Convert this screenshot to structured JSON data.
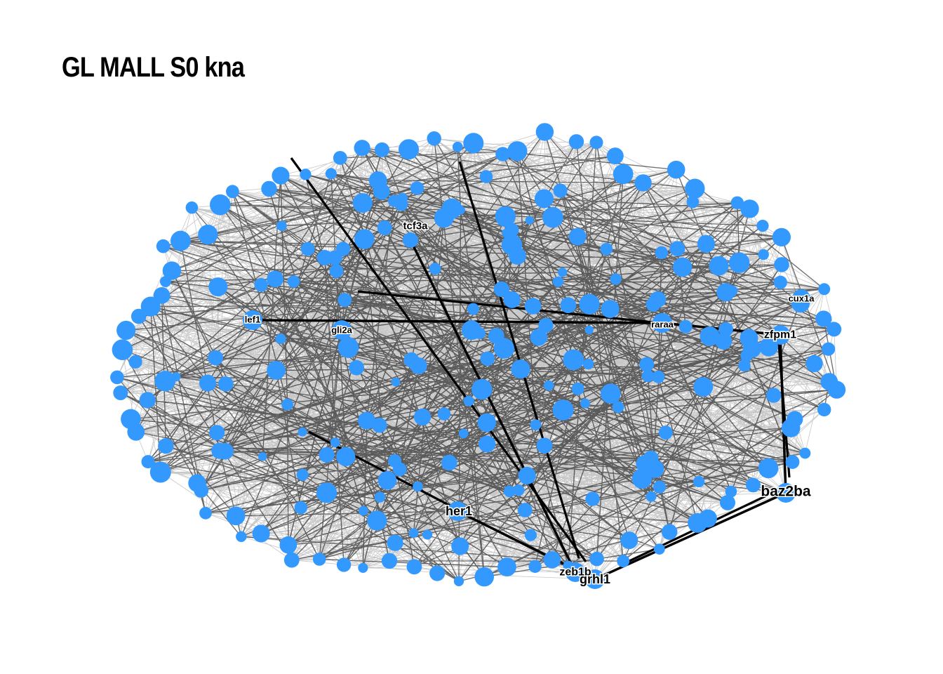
{
  "title": "GL MALL S0 kna",
  "colors": {
    "node": "#3399ff",
    "edge": "#000000",
    "background": "#ffffff"
  },
  "labeled_nodes": [
    {
      "id": "tcf3a",
      "label": "tcf3a"
    },
    {
      "id": "lef1",
      "label": "lef1"
    },
    {
      "id": "gli2a",
      "label": "gli2a"
    },
    {
      "id": "raraa",
      "label": "raraa"
    },
    {
      "id": "cux1a",
      "label": "cux1a"
    },
    {
      "id": "zfpm1",
      "label": "zfpm1"
    },
    {
      "id": "baz2ba",
      "label": "baz2ba"
    },
    {
      "id": "her1",
      "label": "her1"
    },
    {
      "id": "zeb1b",
      "label": "zeb1b"
    },
    {
      "id": "grhl1",
      "label": "grhl1"
    }
  ],
  "strong_edges": [
    [
      "her1",
      "grhl1"
    ],
    [
      "zfpm1",
      "baz2ba"
    ],
    [
      "raraa",
      "zfpm1"
    ],
    [
      "baz2ba",
      "grhl1"
    ],
    [
      "lef1",
      "raraa"
    ],
    [
      "tcf3a",
      "zeb1b"
    ]
  ]
}
